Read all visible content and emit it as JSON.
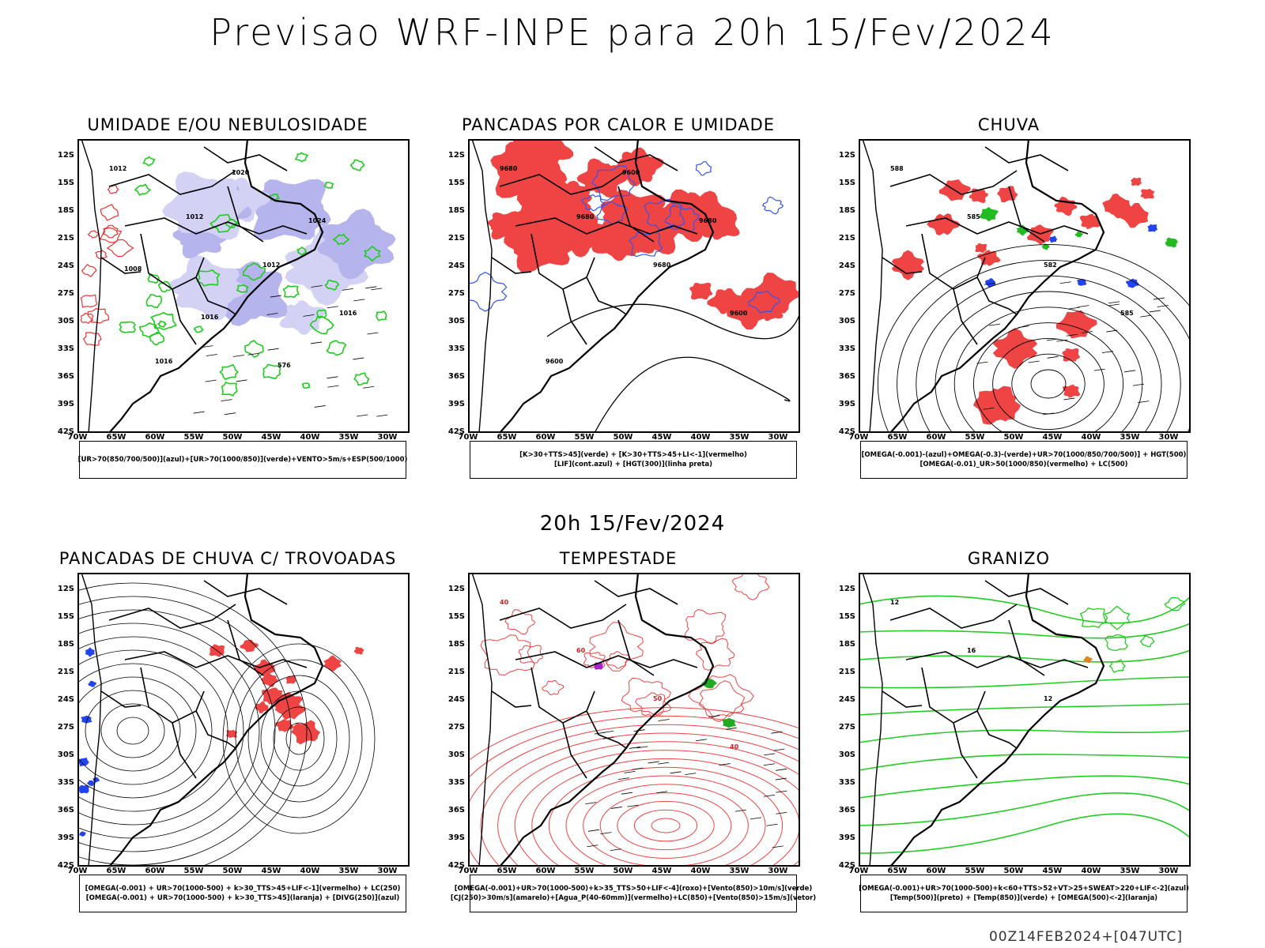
{
  "title": "Previsao WRF-INPE  para 20h 15/Fev/2024",
  "subtitle": "20h 15/Fev/2024",
  "footer": "00Z14FEB2024+[047UTC]",
  "lat_labels": [
    "12S",
    "15S",
    "18S",
    "21S",
    "24S",
    "27S",
    "30S",
    "33S",
    "36S",
    "39S",
    "42S"
  ],
  "lon_labels": [
    "70W",
    "65W",
    "60W",
    "55W",
    "50W",
    "45W",
    "40W",
    "35W",
    "30W"
  ],
  "panels": [
    {
      "title": "UMIDADE E/OU NEBULOSIDADE",
      "legend": [
        "[UR>70(850/700/500)](azul)+[UR>70(1000/850)](verde)+VENTO>5m/s+ESP(500/1000)"
      ],
      "contour_labels": [
        "1012",
        "1012",
        "1012",
        "1016",
        "1016",
        "1020",
        "1024",
        "1008",
        "1016",
        "576"
      ]
    },
    {
      "title": "PANCADAS POR CALOR E UMIDADE",
      "legend": [
        "[K>30+TTS>45](verde) + [K>30+TTS>45+LI<-1](vermelho)",
        "[LIF](cont.azul) + [HGT(300)](linha preta)"
      ],
      "contour_labels": [
        "9680",
        "9680",
        "9680",
        "9600",
        "9600",
        "9600",
        "9680"
      ]
    },
    {
      "title": "CHUVA",
      "legend": [
        "[OMEGA(-0.001)-(azul)+OMEGA(-0.3)-(verde)+UR>70(1000/850/700/500)] + HGT(500)",
        "[OMEGA(-0.01)_UR>50(1000/850)(vermelho) + LC(500)"
      ],
      "contour_labels": [
        "588",
        "585",
        "582",
        "585"
      ]
    },
    {
      "title": "PANCADAS DE CHUVA C/ TROVOADAS",
      "legend": [
        "[OMEGA(-0.001) + UR>70(1000-500) + k>30_TTS>45+LIF<-1](vermelho) + LC(250)",
        "[OMEGA(-0.001) + UR>70(1000-500) + k>30_TTS>45](laranja) + [DIVG(250)](azul)"
      ],
      "contour_labels": []
    },
    {
      "title": "TEMPESTADE",
      "legend": [
        "[OMEGA(-0.001)+UR>70(1000-500)+k>35_TTS>50+LIF<-4](roxo)+[Vento(850)>10m/s](verde)",
        "[CJ(250)>30m/s](amarelo)+[Agua_P(40-60mm)](vermelho)+LC(850)+[Vento(850)>15m/s](vetor)"
      ],
      "contour_labels": [
        "40",
        "60",
        "50",
        "40"
      ]
    },
    {
      "title": "GRANIZO",
      "legend": [
        "[OMEGA(-0.001)+UR>70(1000-500)+k<60+TTS>52+VT>25+SWEAT>220+LIF<-2](azul)",
        "[Temp(500)](preto) + [Temp(850)](verde) + [OMEGA(500)<-2](laranja)"
      ],
      "contour_labels": [
        "12",
        "16",
        "12"
      ]
    }
  ]
}
